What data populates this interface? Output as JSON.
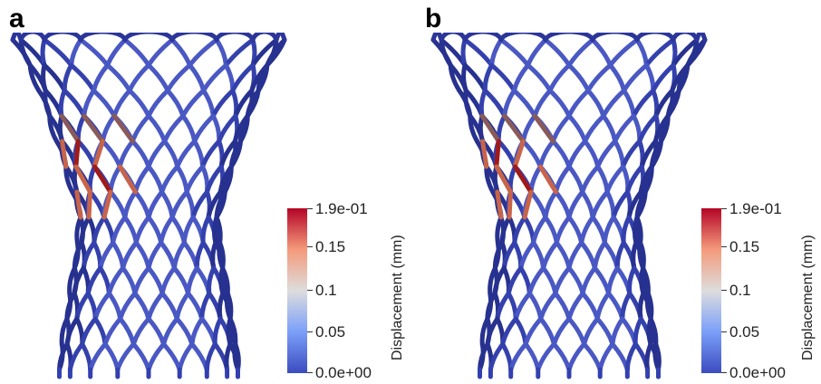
{
  "panels": [
    {
      "label": "a",
      "colorbar": {
        "title": "Displacement (mm)",
        "ticks": [
          "1.9e-01",
          "0.15",
          "0.1",
          "0.05",
          "0.0e+00"
        ]
      },
      "hotspot": "upper-left"
    },
    {
      "label": "b",
      "colorbar": {
        "title": "Displacement (mm)",
        "ticks": [
          "1.9e-01",
          "0.15",
          "0.1",
          "0.05",
          "0.0e+00"
        ]
      },
      "hotspot": "upper-left"
    }
  ],
  "colormap": {
    "low": "#3b4cc0",
    "mid": "#dddddd",
    "high": "#b40426"
  }
}
